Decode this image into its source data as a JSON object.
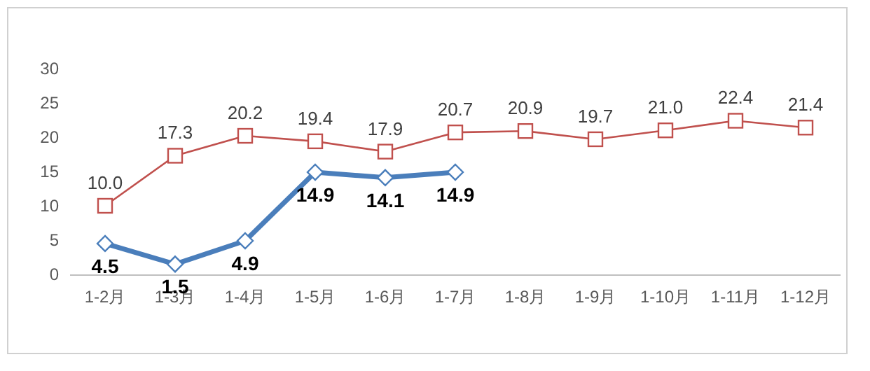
{
  "chart_data": {
    "type": "line",
    "categories": [
      "1-2月",
      "1-3月",
      "1-4月",
      "1-5月",
      "1-6月",
      "1-7月",
      "1-8月",
      "1-9月",
      "1-10月",
      "1-11月",
      "1-12月"
    ],
    "ylim": [
      0,
      30
    ],
    "yticks": [
      0,
      5,
      10,
      15,
      20,
      25,
      30
    ],
    "grid": false,
    "series": [
      {
        "color": "#c0504d",
        "marker": "square",
        "values": [
          10.0,
          17.3,
          20.2,
          19.4,
          17.9,
          20.7,
          20.9,
          19.7,
          21.0,
          22.4,
          21.4
        ],
        "value_labels": [
          "10.0",
          "17.3",
          "20.2",
          "19.4",
          "17.9",
          "20.7",
          "20.9",
          "19.7",
          "21.0",
          "22.4",
          "21.4"
        ]
      },
      {
        "color": "#4a7ebb",
        "marker": "diamond",
        "values": [
          4.5,
          1.5,
          4.9,
          14.9,
          14.1,
          14.9,
          null,
          null,
          null,
          null,
          null
        ],
        "value_labels": [
          "4.5",
          "1.5",
          "4.9",
          "14.9",
          "14.1",
          "14.9",
          null,
          null,
          null,
          null,
          null
        ]
      }
    ]
  }
}
